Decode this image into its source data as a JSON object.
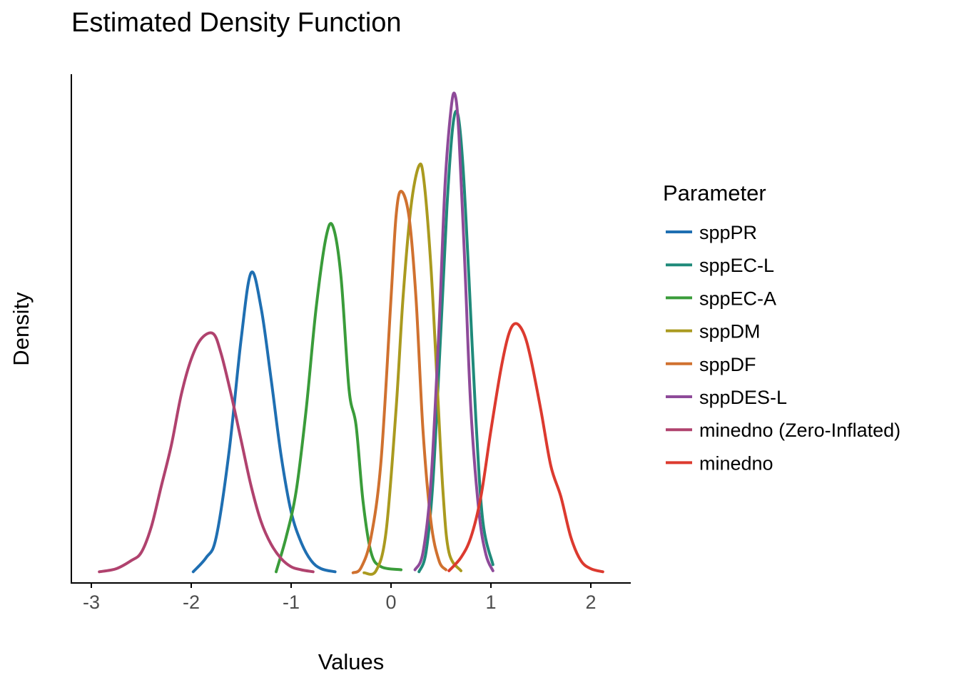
{
  "chart_data": {
    "type": "line",
    "title": "Estimated Density Function",
    "xlabel": "Values",
    "ylabel": "Density",
    "xlim": [
      -3.2,
      2.4
    ],
    "ylim": [
      -0.1,
      4.9
    ],
    "x_ticks": [
      -3,
      -2,
      -1,
      0,
      1,
      2
    ],
    "x_tick_labels": [
      "-3",
      "-2",
      "-1",
      "0",
      "1",
      "2"
    ],
    "grid": false,
    "legend": {
      "title": "Parameter",
      "position": "right"
    },
    "series": [
      {
        "name": "sppPR",
        "color": "#1f6fb2",
        "x": [
          -1.98,
          -1.85,
          -1.75,
          -1.62,
          -1.5,
          -1.4,
          -1.3,
          -1.2,
          -1.1,
          -1.0,
          -0.9,
          -0.8,
          -0.7,
          -0.56
        ],
        "y": [
          0.01,
          0.15,
          0.35,
          1.2,
          2.3,
          2.95,
          2.6,
          1.9,
          1.15,
          0.6,
          0.3,
          0.12,
          0.04,
          0.01
        ]
      },
      {
        "name": "sppEC-L",
        "color": "#1f8a7a",
        "x": [
          0.28,
          0.35,
          0.42,
          0.5,
          0.56,
          0.62,
          0.67,
          0.72,
          0.78,
          0.85,
          0.92,
          1.02
        ],
        "y": [
          0.01,
          0.2,
          0.9,
          2.4,
          3.6,
          4.4,
          4.5,
          4.0,
          2.9,
          1.5,
          0.5,
          0.08
        ]
      },
      {
        "name": "sppEC-A",
        "color": "#3a9c3a",
        "x": [
          -1.15,
          -1.05,
          -0.95,
          -0.85,
          -0.75,
          -0.65,
          -0.58,
          -0.5,
          -0.42,
          -0.35,
          -0.28,
          -0.2,
          -0.1,
          0.1
        ],
        "y": [
          0.01,
          0.35,
          0.8,
          1.6,
          2.6,
          3.3,
          3.4,
          2.9,
          1.8,
          1.45,
          0.7,
          0.2,
          0.06,
          0.03
        ]
      },
      {
        "name": "sppDM",
        "color": "#aa9a1f",
        "x": [
          -0.27,
          -0.15,
          -0.05,
          0.05,
          0.12,
          0.2,
          0.28,
          0.33,
          0.4,
          0.46,
          0.52,
          0.58,
          0.7
        ],
        "y": [
          0.0,
          0.02,
          0.4,
          1.6,
          2.7,
          3.6,
          4.0,
          3.85,
          3.0,
          1.9,
          0.8,
          0.2,
          0.02
        ]
      },
      {
        "name": "sppDF",
        "color": "#d0712f",
        "x": [
          -0.38,
          -0.3,
          -0.2,
          -0.1,
          0.0,
          0.05,
          0.1,
          0.18,
          0.25,
          0.32,
          0.4,
          0.48,
          0.55
        ],
        "y": [
          0.0,
          0.05,
          0.35,
          1.1,
          2.7,
          3.5,
          3.75,
          3.5,
          2.7,
          1.4,
          0.5,
          0.12,
          0.03
        ]
      },
      {
        "name": "sppDES-L",
        "color": "#8e4a99",
        "x": [
          0.24,
          0.32,
          0.4,
          0.48,
          0.54,
          0.6,
          0.64,
          0.68,
          0.74,
          0.8,
          0.88,
          0.95,
          1.02
        ],
        "y": [
          0.03,
          0.2,
          0.9,
          2.4,
          3.8,
          4.55,
          4.7,
          4.3,
          3.0,
          1.6,
          0.6,
          0.18,
          0.02
        ]
      },
      {
        "name": "minedno (Zero-Inflated)",
        "color": "#b0426e",
        "x": [
          -2.92,
          -2.75,
          -2.6,
          -2.5,
          -2.4,
          -2.3,
          -2.2,
          -2.1,
          -2.0,
          -1.9,
          -1.78,
          -1.7,
          -1.6,
          -1.5,
          -1.4,
          -1.3,
          -1.2,
          -1.1,
          -1.0,
          -0.9,
          -0.78
        ],
        "y": [
          0.01,
          0.04,
          0.12,
          0.2,
          0.45,
          0.85,
          1.25,
          1.75,
          2.1,
          2.3,
          2.35,
          2.15,
          1.75,
          1.3,
          0.85,
          0.5,
          0.28,
          0.14,
          0.06,
          0.03,
          0.01
        ]
      },
      {
        "name": "minedno",
        "color": "#dc3a2f",
        "x": [
          0.58,
          0.7,
          0.8,
          0.9,
          1.0,
          1.1,
          1.18,
          1.25,
          1.33,
          1.4,
          1.5,
          1.6,
          1.7,
          1.8,
          1.9,
          2.0,
          2.12
        ],
        "y": [
          0.02,
          0.15,
          0.35,
          0.75,
          1.4,
          2.0,
          2.35,
          2.45,
          2.35,
          2.1,
          1.6,
          1.05,
          0.75,
          0.35,
          0.12,
          0.04,
          0.01
        ]
      }
    ]
  }
}
